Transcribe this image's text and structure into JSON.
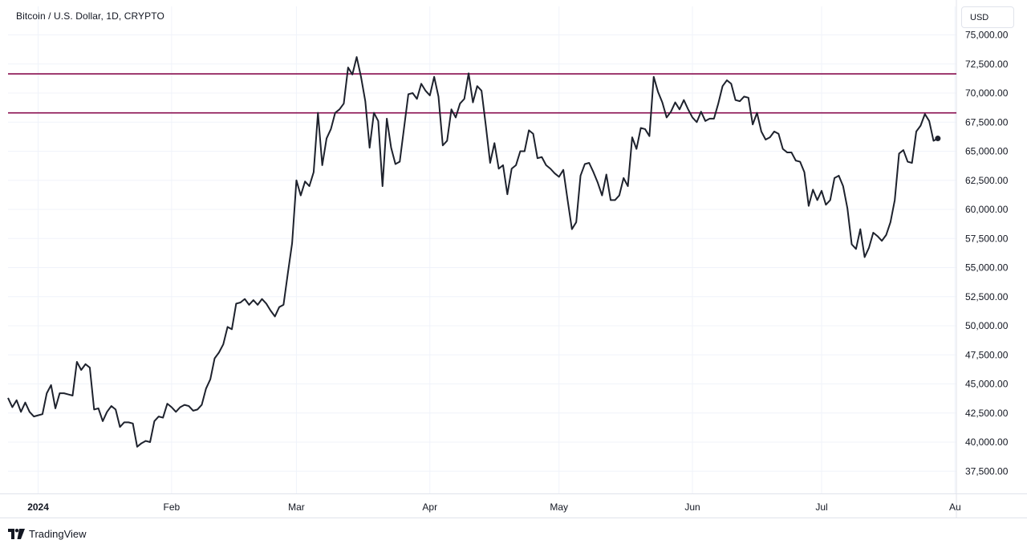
{
  "header": {
    "symbol_title": "Bitcoin / U.S. Dollar, 1D, CRYPTO",
    "currency_label": "USD"
  },
  "branding": {
    "text": "TradingView"
  },
  "colors": {
    "price_line": "#1e222d",
    "level_line": "#880e4f",
    "grid": "#f0f3fa",
    "axis_border": "#e0e3eb"
  },
  "chart_data": {
    "type": "line",
    "series": [
      {
        "values": [
          43800,
          43000,
          43600,
          42600,
          43400,
          42600,
          42200,
          42300,
          42400,
          44200,
          44900,
          42900,
          44200,
          44200,
          44100,
          44000,
          46900,
          46200,
          46700,
          46400,
          42800,
          42900,
          41800,
          42600,
          43100,
          42800,
          41300,
          41700,
          41700,
          41600,
          39600,
          39900,
          40100,
          40000,
          41800,
          42200,
          42100,
          43300,
          43000,
          42600,
          43000,
          43200,
          43100,
          42700,
          42800,
          43200,
          44600,
          45400,
          47200,
          47700,
          48400,
          49900,
          49700,
          51900,
          52000,
          52300,
          51800,
          52200,
          51800,
          52300,
          51900,
          51300,
          50800,
          51600,
          51800,
          54500,
          57100,
          62500,
          61200,
          62400,
          62000,
          63200,
          68300,
          63800,
          66100,
          66900,
          68300,
          68600,
          69100,
          72200,
          71600,
          73100,
          71400,
          69300,
          65300,
          68300,
          67600,
          62000,
          67800,
          65300,
          63900,
          64100,
          67000,
          69900,
          70000,
          69500,
          70800,
          70200,
          69800,
          71400,
          69700,
          65500,
          65900,
          68600,
          67900,
          69100,
          69500,
          71700,
          69200,
          70600,
          70200,
          67200,
          64000,
          65700,
          63500,
          63800,
          61300,
          63500,
          63800,
          65000,
          65000,
          66800,
          66500,
          64400,
          64500,
          63800,
          63500,
          63100,
          62800,
          63400,
          60800,
          58300,
          58900,
          62900,
          63900,
          64000,
          63200,
          62300,
          61200,
          63000,
          60800,
          60800,
          61200,
          62700,
          62000,
          66200,
          65200,
          67000,
          66900,
          66300,
          71400,
          70100,
          69200,
          67900,
          68400,
          69200,
          68600,
          69400,
          68600,
          67900,
          67500,
          68400,
          67600,
          67800,
          67800,
          69100,
          70600,
          71100,
          70800,
          69400,
          69300,
          69700,
          69600,
          67300,
          68300,
          66700,
          66000,
          66200,
          66700,
          66500,
          65200,
          64900,
          64900,
          64200,
          64100,
          63200,
          60300,
          61700,
          60800,
          61600,
          60400,
          60800,
          62700,
          62900,
          62000,
          60100,
          57000,
          56600,
          58300,
          55900,
          56700,
          58000,
          57700,
          57300,
          57800,
          58900,
          60800,
          64800,
          65100,
          64100,
          64000,
          66700,
          67200,
          68200,
          67600,
          65900,
          66100
        ],
        "last_point_marker": true
      }
    ],
    "y_axis": {
      "ticks": [
        37500,
        40000,
        42500,
        45000,
        47500,
        50000,
        52500,
        55000,
        57500,
        60000,
        62500,
        65000,
        67500,
        70000,
        72500,
        75000
      ],
      "tick_labels": [
        "37,500.00",
        "40,000.00",
        "42,500.00",
        "45,000.00",
        "47,500.00",
        "50,000.00",
        "52,500.00",
        "55,000.00",
        "57,500.00",
        "60,000.00",
        "62,500.00",
        "65,000.00",
        "67,500.00",
        "70,000.00",
        "72,500.00",
        "75,000.00"
      ]
    },
    "x_axis": {
      "ticks": [
        {
          "label": "2024",
          "index": 7,
          "bold": true
        },
        {
          "label": "Feb",
          "index": 38,
          "bold": false
        },
        {
          "label": "Mar",
          "index": 67,
          "bold": false
        },
        {
          "label": "Apr",
          "index": 98,
          "bold": false
        },
        {
          "label": "May",
          "index": 128,
          "bold": false
        },
        {
          "label": "Jun",
          "index": 159,
          "bold": false
        },
        {
          "label": "Jul",
          "index": 189,
          "bold": false
        },
        {
          "label": "Au",
          "index": 220,
          "bold": false
        }
      ]
    },
    "horizontal_levels": [
      71650,
      68300
    ],
    "grid": true,
    "title": "Bitcoin / U.S. Dollar, 1D, CRYPTO"
  }
}
